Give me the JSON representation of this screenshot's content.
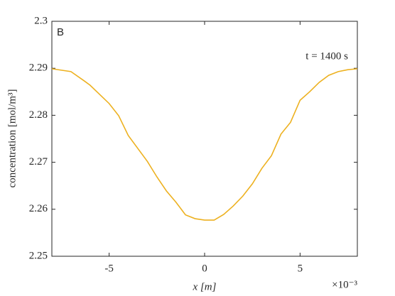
{
  "chart_data": {
    "type": "line",
    "panel_label": "B",
    "annotation": "t = 1400 s",
    "xlabel": "x [m]",
    "ylabel": "concentration [mol/m³]",
    "x_multiplier": "×10⁻³",
    "x": [
      -8,
      -7,
      -6.3,
      -6,
      -5,
      -4.5,
      -4,
      -3,
      -2.5,
      -2,
      -1.5,
      -1,
      -0.5,
      0,
      0.5,
      1,
      1.5,
      2,
      2.5,
      3,
      3.5,
      4,
      4.5,
      5,
      5.5,
      6,
      6.5,
      7,
      7.5,
      8
    ],
    "series": [
      {
        "color": "#EDB120",
        "values": [
          2.2899,
          2.2893,
          2.2873,
          2.2864,
          2.2825,
          2.2799,
          2.2757,
          2.2702,
          2.2669,
          2.2639,
          2.2615,
          2.2588,
          2.258,
          2.2577,
          2.2577,
          2.2589,
          2.2607,
          2.2628,
          2.2654,
          2.2687,
          2.2714,
          2.276,
          2.2785,
          2.2832,
          2.285,
          2.287,
          2.2885,
          2.2893,
          2.2897,
          2.2899
        ]
      }
    ],
    "xlim": [
      -8,
      8
    ],
    "xticks": [
      -5,
      0,
      5
    ],
    "ylim": [
      2.25,
      2.3
    ],
    "yticks": [
      2.25,
      2.26,
      2.27,
      2.28,
      2.29,
      2.3
    ]
  }
}
